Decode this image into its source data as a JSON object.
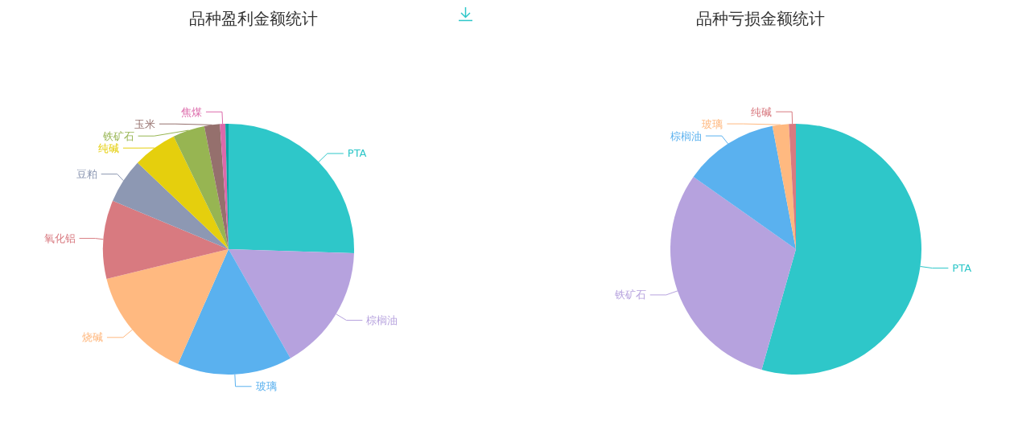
{
  "chart_data": [
    {
      "type": "pie",
      "title": "品种盈利金额统计",
      "categories": [
        "PTA",
        "棕榈油",
        "玻璃",
        "烧碱",
        "氧化铝",
        "豆粕",
        "纯碱",
        "铁矿石",
        "玉米",
        "焦煤",
        null
      ],
      "values": [
        25.5,
        16.3,
        14.8,
        14.6,
        10.1,
        5.8,
        5.7,
        4.1,
        2.0,
        0.7,
        0.4
      ],
      "colors": [
        "#2ec7c9",
        "#b6a2de",
        "#5ab1ef",
        "#ffb980",
        "#d87a80",
        "#8d98b3",
        "#e5cf0d",
        "#97b552",
        "#95706d",
        "#dc69aa",
        "#07a2a4"
      ]
    },
    {
      "type": "pie",
      "title": "品种亏损金额统计",
      "categories": [
        "PTA",
        "铁矿石",
        "棕榈油",
        "玻璃",
        "纯碱"
      ],
      "values": [
        54.4,
        30.4,
        12.2,
        2.1,
        0.9
      ],
      "colors": [
        "#2ec7c9",
        "#b6a2de",
        "#5ab1ef",
        "#ffb980",
        "#d87a80"
      ]
    }
  ]
}
